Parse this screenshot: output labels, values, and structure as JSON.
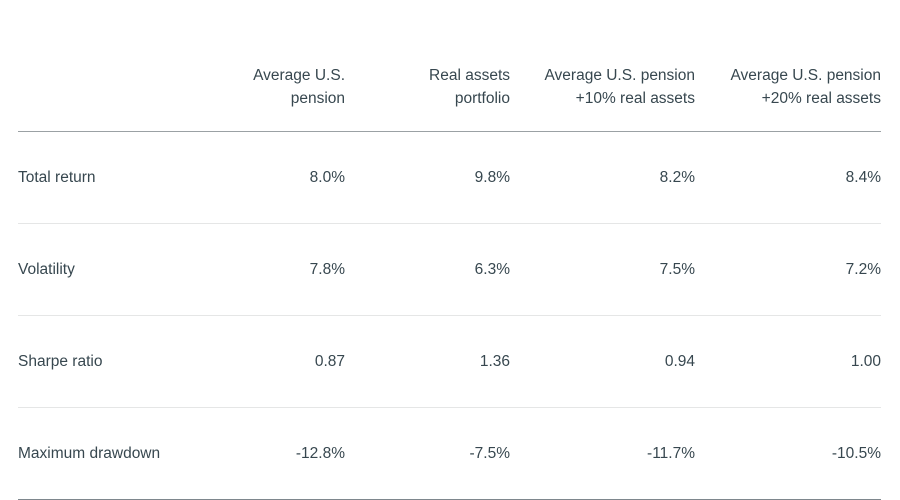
{
  "table": {
    "columns": [
      {
        "line1": "Average U.S.",
        "line2": "pension"
      },
      {
        "line1": "Real assets",
        "line2": "portfolio"
      },
      {
        "line1": "Average U.S. pension",
        "line2": "+10% real assets"
      },
      {
        "line1": "Average U.S. pension",
        "line2": "+20% real assets"
      }
    ],
    "rows": [
      {
        "label": "Total return",
        "values": [
          "8.0%",
          "9.8%",
          "8.2%",
          "8.4%"
        ]
      },
      {
        "label": "Volatility",
        "values": [
          "7.8%",
          "6.3%",
          "7.5%",
          "7.2%"
        ]
      },
      {
        "label": "Sharpe ratio",
        "values": [
          "0.87",
          "1.36",
          "0.94",
          "1.00"
        ]
      },
      {
        "label": "Maximum drawdown",
        "values": [
          "-12.8%",
          "-7.5%",
          "-11.7%",
          "-10.5%"
        ]
      }
    ]
  },
  "chart_data": {
    "type": "table",
    "columns": [
      "",
      "Average U.S. pension",
      "Real assets portfolio",
      "Average U.S. pension +10% real assets",
      "Average U.S. pension +20% real assets"
    ],
    "rows": [
      [
        "Total return",
        "8.0%",
        "9.8%",
        "8.2%",
        "8.4%"
      ],
      [
        "Volatility",
        "7.8%",
        "6.3%",
        "7.5%",
        "7.2%"
      ],
      [
        "Sharpe ratio",
        "0.87",
        "1.36",
        "0.94",
        "1.00"
      ],
      [
        "Maximum drawdown",
        "-12.8%",
        "-7.5%",
        "-11.7%",
        "-10.5%"
      ]
    ],
    "layout": {
      "value_alignment": "right",
      "grid": "horizontal-rules-only"
    }
  },
  "colors": {
    "text": "#37474f",
    "header_rule": "#9ba1a4",
    "row_rule": "#e5e6e6",
    "bottom_rule": "#7e878d",
    "background": "#ffffff"
  }
}
